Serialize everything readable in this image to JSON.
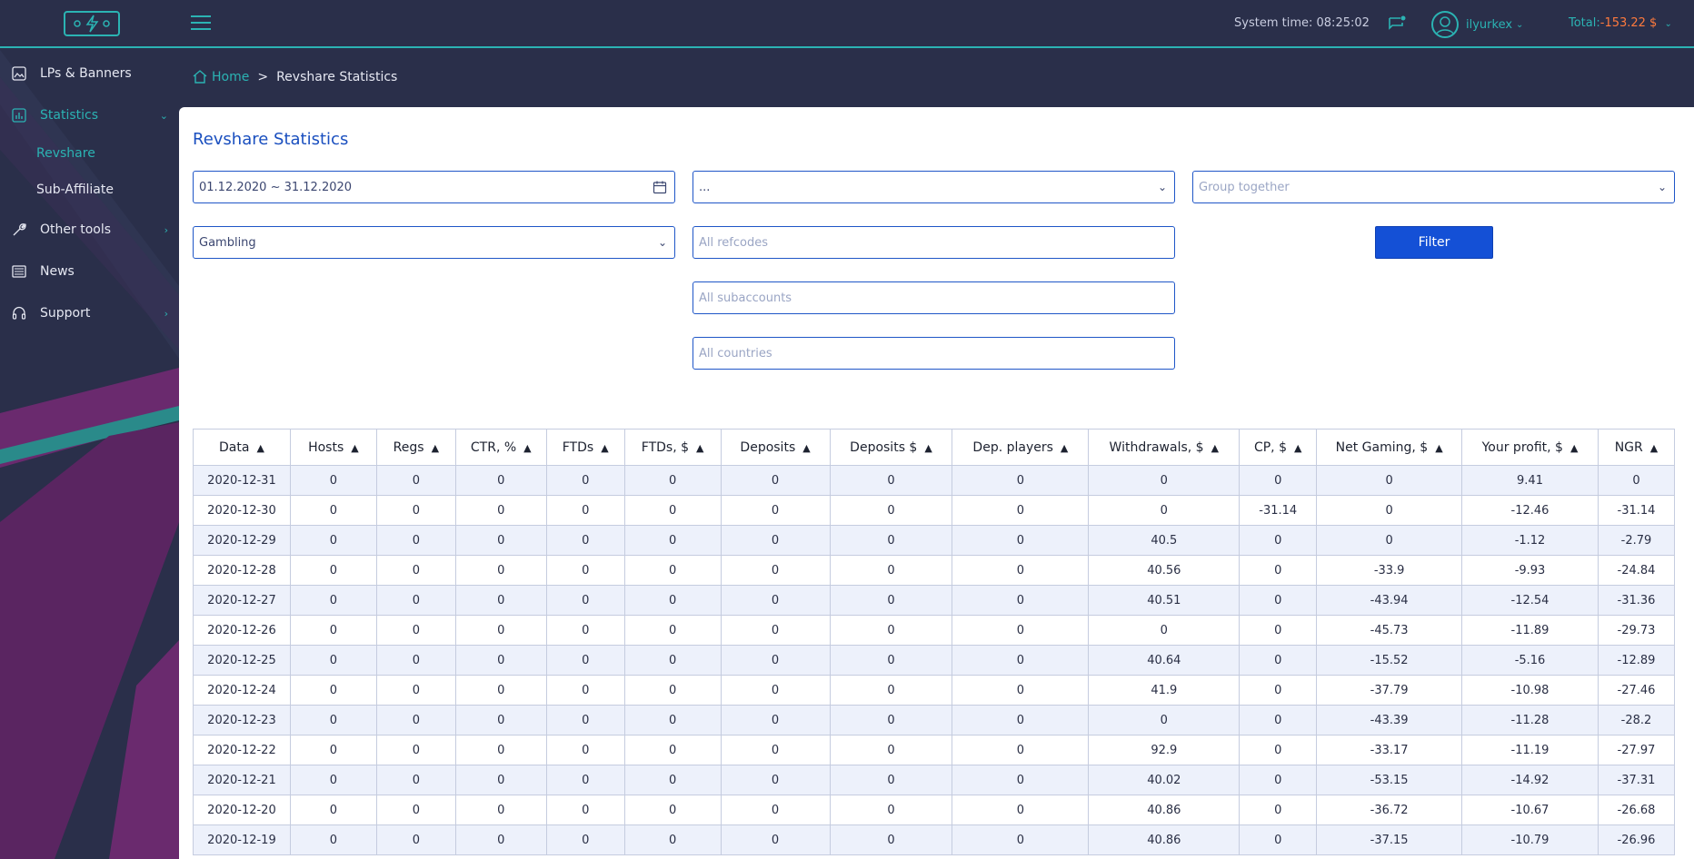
{
  "header": {
    "system_time_label": "System time:",
    "system_time_value": "08:25:02",
    "username": "ilyurkex",
    "total_label": "Total:",
    "total_value": "-153.22 $",
    "accent_color": "#2bb3b3"
  },
  "sidebar": {
    "items": [
      {
        "label": "LPs & Banners",
        "icon": "image-icon"
      },
      {
        "label": "Statistics",
        "icon": "bar-chart-icon"
      },
      {
        "label": "Other tools",
        "icon": "wrench-icon"
      },
      {
        "label": "News",
        "icon": "newspaper-icon"
      },
      {
        "label": "Support",
        "icon": "headset-icon"
      }
    ],
    "sub_items": [
      {
        "label": "Revshare"
      },
      {
        "label": "Sub-Affiliate"
      }
    ]
  },
  "breadcrumb": {
    "home": "Home",
    "separator": ">",
    "current": "Revshare Statistics"
  },
  "page": {
    "title": "Revshare Statistics"
  },
  "filters": {
    "date_range": "01.12.2020 ~ 31.12.2020",
    "select_mid": "...",
    "group_placeholder": "Group together",
    "category": "Gambling",
    "refcodes_placeholder": "All refcodes",
    "subaccounts_placeholder": "All subaccounts",
    "countries_placeholder": "All countries",
    "filter_button": "Filter"
  },
  "table": {
    "columns": [
      "Data",
      "Hosts",
      "Regs",
      "CTR, %",
      "FTDs",
      "FTDs, $",
      "Deposits",
      "Deposits $",
      "Dep. players",
      "Withdrawals, $",
      "CP, $",
      "Net Gaming, $",
      "Your profit, $",
      "NGR"
    ],
    "rows": [
      [
        "2020-12-31",
        "0",
        "0",
        "0",
        "0",
        "0",
        "0",
        "0",
        "0",
        "0",
        "0",
        "0",
        "9.41",
        "0"
      ],
      [
        "2020-12-30",
        "0",
        "0",
        "0",
        "0",
        "0",
        "0",
        "0",
        "0",
        "0",
        "-31.14",
        "0",
        "-12.46",
        "-31.14"
      ],
      [
        "2020-12-29",
        "0",
        "0",
        "0",
        "0",
        "0",
        "0",
        "0",
        "0",
        "40.5",
        "0",
        "0",
        "-1.12",
        "-2.79"
      ],
      [
        "2020-12-28",
        "0",
        "0",
        "0",
        "0",
        "0",
        "0",
        "0",
        "0",
        "40.56",
        "0",
        "-33.9",
        "-9.93",
        "-24.84"
      ],
      [
        "2020-12-27",
        "0",
        "0",
        "0",
        "0",
        "0",
        "0",
        "0",
        "0",
        "40.51",
        "0",
        "-43.94",
        "-12.54",
        "-31.36"
      ],
      [
        "2020-12-26",
        "0",
        "0",
        "0",
        "0",
        "0",
        "0",
        "0",
        "0",
        "0",
        "0",
        "-45.73",
        "-11.89",
        "-29.73"
      ],
      [
        "2020-12-25",
        "0",
        "0",
        "0",
        "0",
        "0",
        "0",
        "0",
        "0",
        "40.64",
        "0",
        "-15.52",
        "-5.16",
        "-12.89"
      ],
      [
        "2020-12-24",
        "0",
        "0",
        "0",
        "0",
        "0",
        "0",
        "0",
        "0",
        "41.9",
        "0",
        "-37.79",
        "-10.98",
        "-27.46"
      ],
      [
        "2020-12-23",
        "0",
        "0",
        "0",
        "0",
        "0",
        "0",
        "0",
        "0",
        "0",
        "0",
        "-43.39",
        "-11.28",
        "-28.2"
      ],
      [
        "2020-12-22",
        "0",
        "0",
        "0",
        "0",
        "0",
        "0",
        "0",
        "0",
        "92.9",
        "0",
        "-33.17",
        "-11.19",
        "-27.97"
      ],
      [
        "2020-12-21",
        "0",
        "0",
        "0",
        "0",
        "0",
        "0",
        "0",
        "0",
        "40.02",
        "0",
        "-53.15",
        "-14.92",
        "-37.31"
      ],
      [
        "2020-12-20",
        "0",
        "0",
        "0",
        "0",
        "0",
        "0",
        "0",
        "0",
        "40.86",
        "0",
        "-36.72",
        "-10.67",
        "-26.68"
      ],
      [
        "2020-12-19",
        "0",
        "0",
        "0",
        "0",
        "0",
        "0",
        "0",
        "0",
        "40.86",
        "0",
        "-37.15",
        "-10.79",
        "-26.96"
      ]
    ]
  }
}
